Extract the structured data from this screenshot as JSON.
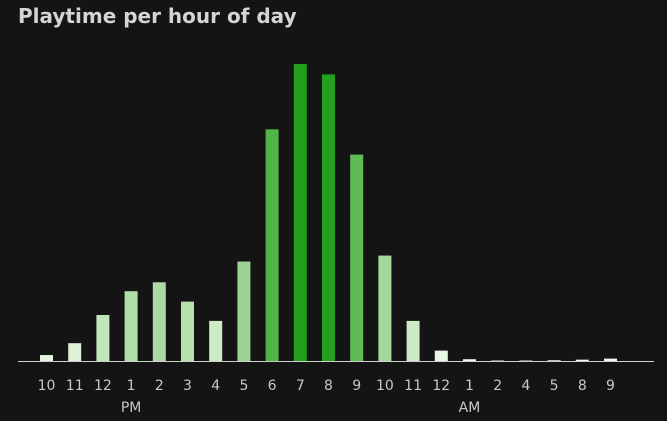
{
  "chart_data": {
    "type": "bar",
    "title": "Playtime per hour of day",
    "xlabel": "",
    "ylabel": "",
    "ylim": [
      0,
      100
    ],
    "grid": false,
    "legend": "none",
    "categories": [
      "10",
      "11",
      "12",
      "1",
      "2",
      "3",
      "4",
      "5",
      "6",
      "7",
      "8",
      "9",
      "10",
      "11",
      "12",
      "1",
      "2",
      "4",
      "5",
      "8",
      "9"
    ],
    "values": [
      2.0,
      6.0,
      15.5,
      23.5,
      26.5,
      20.0,
      13.5,
      33.5,
      78.0,
      100.0,
      96.5,
      69.5,
      35.5,
      13.5,
      3.5,
      0.6,
      0.15,
      0.15,
      0.25,
      0.45,
      0.8
    ],
    "colors": [
      "#e4f4e1",
      "#ddf1d9",
      "#c1e6ba",
      "#b1dea8",
      "#acdca2",
      "#b6e0ad",
      "#cdebc7",
      "#9ad491",
      "#50b446",
      "#22a01c",
      "#259f1e",
      "#60bb57",
      "#a4d89b",
      "#cdeac6",
      "#e8f5e6",
      "#f3faf2",
      "#f7fcf6",
      "#f7fcf6",
      "#f6fbf5",
      "#f3faf2",
      "#f1f9ef"
    ],
    "groups": [
      {
        "label": "PM",
        "start_index": 3
      },
      {
        "label": "AM",
        "start_index": 15
      }
    ],
    "axis_color": "#cfcfcf"
  }
}
